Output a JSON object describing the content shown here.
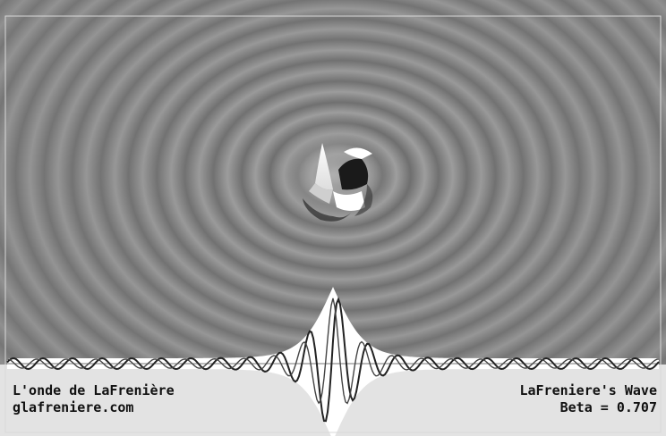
{
  "captions": {
    "title_fr": "L'onde de LaFrenière",
    "website": "glafreniere.com",
    "title_en": "LaFreniere's Wave",
    "beta_text": "Beta = 0.707"
  },
  "colors": {
    "field_mid": "#8c8c8c",
    "lower_panel": "#e3e3e3",
    "wave_stroke": "#222222",
    "envelope_fill": "#ffffff",
    "axis_line": "#777777"
  },
  "simulation": {
    "beta": 0.707
  }
}
